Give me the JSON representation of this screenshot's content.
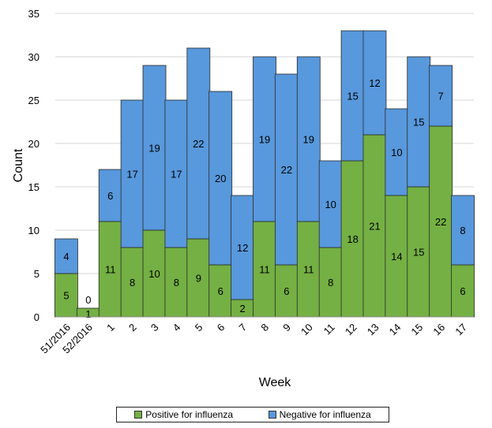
{
  "chart_data": {
    "type": "bar",
    "stacked": true,
    "xlabel": "Week",
    "ylabel": "Count",
    "ylim": [
      0,
      35
    ],
    "yticks": [
      0,
      5,
      10,
      15,
      20,
      25,
      30,
      35
    ],
    "grid": true,
    "legend_position": "bottom",
    "categories": [
      "51/2016",
      "52/2016",
      "1",
      "2",
      "3",
      "4",
      "5",
      "6",
      "7",
      "8",
      "9",
      "10",
      "11",
      "12",
      "13",
      "14",
      "15",
      "16",
      "17"
    ],
    "series": [
      {
        "name": "Positive for influenza",
        "color": "#74b043",
        "values": [
          5,
          1,
          11,
          8,
          10,
          8,
          9,
          6,
          2,
          11,
          6,
          11,
          8,
          18,
          21,
          14,
          15,
          22,
          6
        ]
      },
      {
        "name": "Negative for influenza",
        "color": "#5898dc",
        "values": [
          4,
          0,
          6,
          17,
          19,
          17,
          22,
          20,
          12,
          19,
          22,
          19,
          10,
          15,
          12,
          10,
          15,
          7,
          8
        ]
      }
    ]
  }
}
